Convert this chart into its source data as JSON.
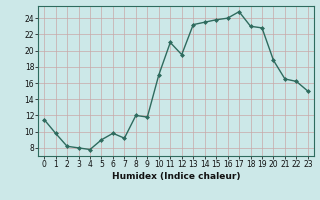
{
  "x": [
    0,
    1,
    2,
    3,
    4,
    5,
    6,
    7,
    8,
    9,
    10,
    11,
    12,
    13,
    14,
    15,
    16,
    17,
    18,
    19,
    20,
    21,
    22,
    23
  ],
  "y": [
    11.5,
    9.8,
    8.2,
    8.0,
    7.8,
    9.0,
    9.8,
    9.2,
    12.0,
    11.8,
    17.0,
    21.0,
    19.5,
    23.2,
    23.5,
    23.8,
    24.0,
    24.8,
    23.0,
    22.8,
    18.8,
    16.5,
    16.2,
    15.0
  ],
  "line_color": "#2e6b5e",
  "marker": "D",
  "markersize": 2.0,
  "linewidth": 1.0,
  "xlabel": "Humidex (Indice chaleur)",
  "bg_color": "#cce8e8",
  "grid_color": "#b8d4d4",
  "xlim": [
    -0.5,
    23.5
  ],
  "ylim": [
    7,
    25.5
  ],
  "yticks": [
    8,
    10,
    12,
    14,
    16,
    18,
    20,
    22,
    24
  ],
  "xticks": [
    0,
    1,
    2,
    3,
    4,
    5,
    6,
    7,
    8,
    9,
    10,
    11,
    12,
    13,
    14,
    15,
    16,
    17,
    18,
    19,
    20,
    21,
    22,
    23
  ],
  "tick_fontsize": 5.5,
  "xlabel_fontsize": 6.5
}
